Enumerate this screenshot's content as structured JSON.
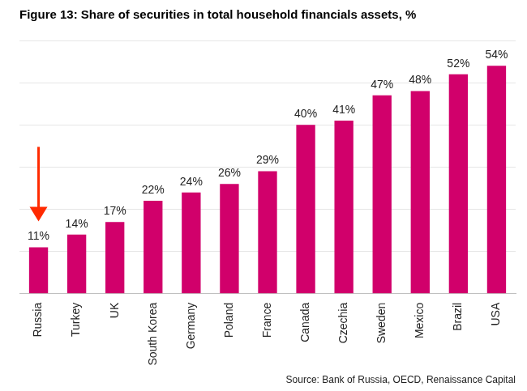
{
  "chart_data": {
    "type": "bar",
    "title": "Figure 13: Share of securities in total household financials assets, %",
    "source": "Source: Bank of Russia, OECD, Renaissance Capital",
    "categories": [
      "Russia",
      "Turkey",
      "UK",
      "South Korea",
      "Germany",
      "Poland",
      "France",
      "Canada",
      "Czechia",
      "Sweden",
      "Mexico",
      "Brazil",
      "USA"
    ],
    "values": [
      11,
      14,
      17,
      22,
      24,
      26,
      29,
      40,
      41,
      47,
      48,
      52,
      54
    ],
    "value_labels": [
      "11%",
      "14%",
      "17%",
      "22%",
      "24%",
      "26%",
      "29%",
      "40%",
      "41%",
      "47%",
      "48%",
      "52%",
      "54%"
    ],
    "color": "#d1006b",
    "ylim": [
      0,
      60
    ],
    "yticks": [
      0,
      10,
      20,
      30,
      40,
      50,
      60
    ],
    "grid": true,
    "data_labels": true,
    "tick_labels": "x"
  }
}
